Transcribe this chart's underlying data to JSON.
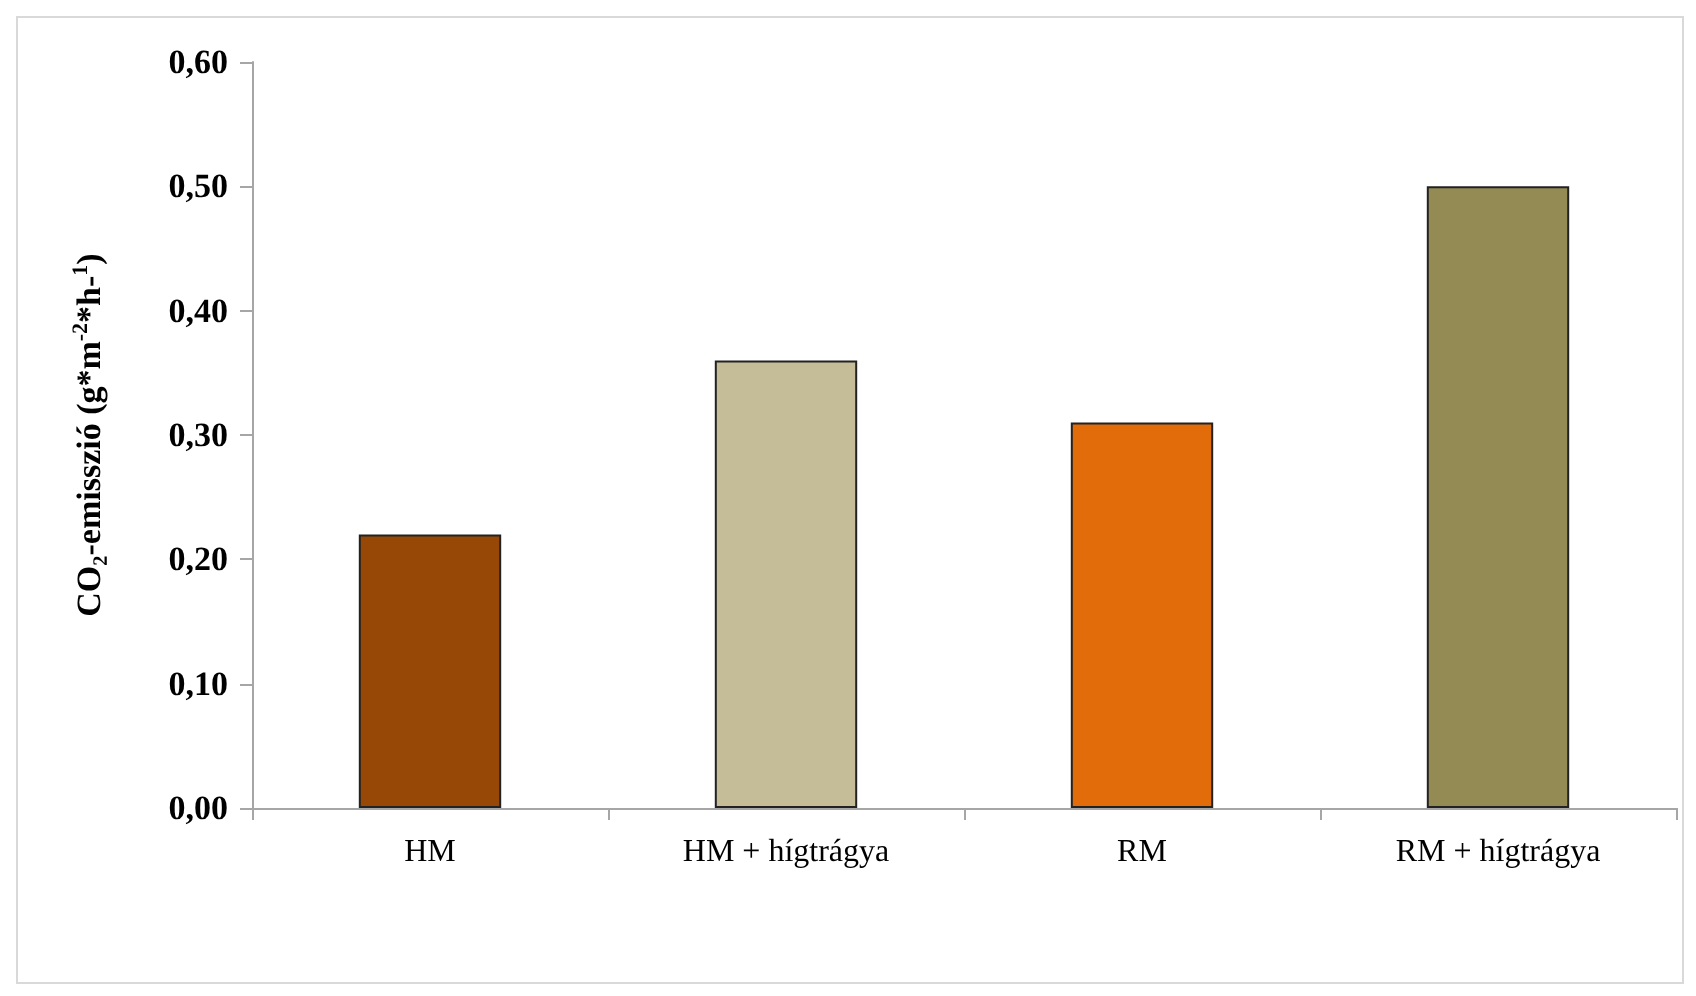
{
  "chart_data": {
    "type": "bar",
    "ylabel": "CO₂-emisszió (g*m$^{-2}$*h-$^{1}$)",
    "categories": [
      "HM",
      "HM + hígtrágya",
      "RM",
      "RM + hígtrágya"
    ],
    "values": [
      0.22,
      0.36,
      0.31,
      0.5
    ],
    "colors": [
      "#974807",
      "#c4bd97",
      "#e36c0a",
      "#948a54"
    ],
    "ylim": [
      0,
      0.6
    ],
    "yticks": [
      {
        "value": 0,
        "label": "0,00"
      },
      {
        "value": 0.1,
        "label": "0,10"
      },
      {
        "value": 0.2,
        "label": "0,20"
      },
      {
        "value": 0.3,
        "label": "0,30"
      },
      {
        "value": 0.4,
        "label": "0,40"
      },
      {
        "value": 0.5,
        "label": "0,50"
      },
      {
        "value": 0.6,
        "label": "0,60"
      }
    ],
    "grid": false
  }
}
